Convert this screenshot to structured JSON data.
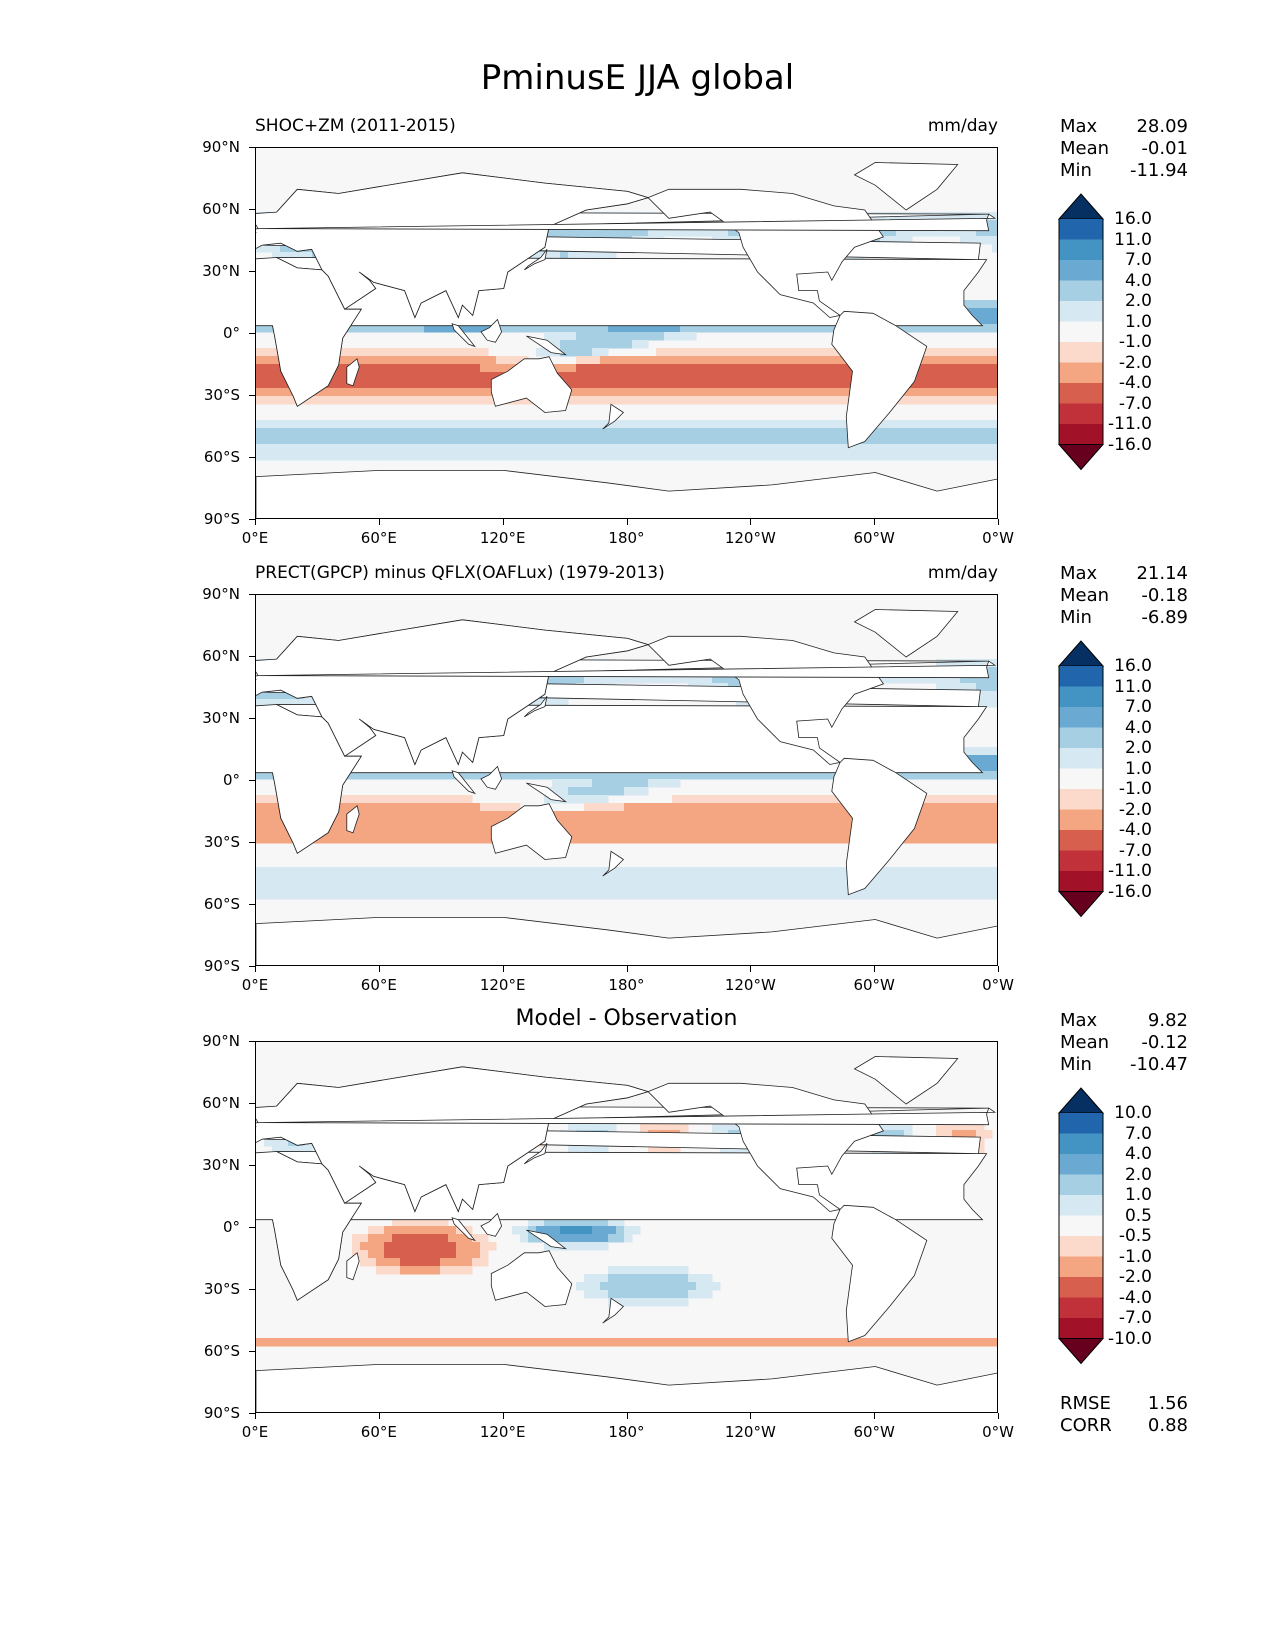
{
  "figure_title": "PminusE JJA global",
  "x_ticks": [
    "0°E",
    "60°E",
    "120°E",
    "180°",
    "120°W",
    "60°W",
    "0°W"
  ],
  "y_ticks": [
    "90°N",
    "60°N",
    "30°N",
    "0°",
    "30°S",
    "60°S",
    "90°S"
  ],
  "panels": [
    {
      "left_title": "SHOC+ZM (2011-2015)",
      "center_title": "",
      "right_title": "mm/day",
      "stats": [
        {
          "label": "Max",
          "value": "28.09"
        },
        {
          "label": "Mean",
          "value": "-0.01"
        },
        {
          "label": "Min",
          "value": "-11.94"
        }
      ],
      "colorbar_levels": [
        "16.0",
        "11.0",
        "7.0",
        "4.0",
        "2.0",
        "1.0",
        "-1.0",
        "-2.0",
        "-4.0",
        "-7.0",
        "-11.0",
        "-16.0"
      ],
      "extra_stats": []
    },
    {
      "left_title": "PRECT(GPCP) minus QFLX(OAFLux) (1979-2013)",
      "center_title": "",
      "right_title": "mm/day",
      "stats": [
        {
          "label": "Max",
          "value": "21.14"
        },
        {
          "label": "Mean",
          "value": "-0.18"
        },
        {
          "label": "Min",
          "value": "-6.89"
        }
      ],
      "colorbar_levels": [
        "16.0",
        "11.0",
        "7.0",
        "4.0",
        "2.0",
        "1.0",
        "-1.0",
        "-2.0",
        "-4.0",
        "-7.0",
        "-11.0",
        "-16.0"
      ],
      "extra_stats": []
    },
    {
      "left_title": "",
      "center_title": "Model - Observation",
      "right_title": "",
      "stats": [
        {
          "label": "Max",
          "value": "9.82"
        },
        {
          "label": "Mean",
          "value": "-0.12"
        },
        {
          "label": "Min",
          "value": "-10.47"
        }
      ],
      "colorbar_levels": [
        "10.0",
        "7.0",
        "4.0",
        "2.0",
        "1.0",
        "0.5",
        "-0.5",
        "-1.0",
        "-2.0",
        "-4.0",
        "-7.0",
        "-10.0"
      ],
      "extra_stats": [
        {
          "label": "RMSE",
          "value": "1.56"
        },
        {
          "label": "CORR",
          "value": "0.88"
        }
      ]
    }
  ],
  "colors": {
    "colorbar": [
      "#053061",
      "#2166ac",
      "#4393c3",
      "#6aa9d2",
      "#a6cfe4",
      "#d6e8f2",
      "#f7f7f7",
      "#fbdacb",
      "#f4a582",
      "#d6604d",
      "#c0313a",
      "#a11228",
      "#67001f"
    ],
    "land": "#ffffff",
    "ocean_neutral": "#f7f7f7"
  }
}
